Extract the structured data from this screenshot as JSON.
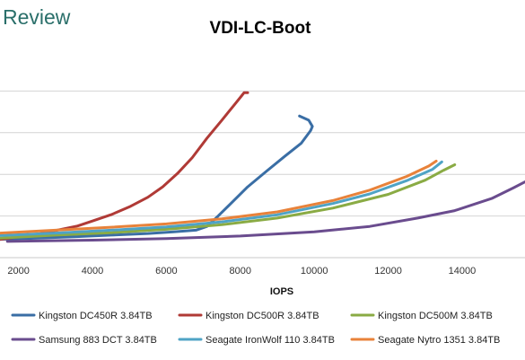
{
  "brand": {
    "logo_text": "Review",
    "logo_color": "#2a6f6a"
  },
  "chart_data": {
    "type": "line",
    "title": "VDI-LC-Boot",
    "xlabel": "IOPS",
    "ylabel": "",
    "xlim": [
      1500,
      15700
    ],
    "ylim": [
      0,
      5
    ],
    "x_ticks": [
      2000,
      4000,
      6000,
      8000,
      10000,
      12000,
      14000
    ],
    "x_tick_labels": [
      "2000",
      "4000",
      "6000",
      "8000",
      "10000",
      "12000",
      "14000"
    ],
    "y_gridlines": [
      1,
      2,
      3,
      4
    ],
    "grid": true,
    "legend_position": "bottom",
    "series": [
      {
        "name": "Kingston DC450R 3.84TB",
        "color": "#3a6ea5",
        "points": [
          [
            1500,
            0.44
          ],
          [
            2500,
            0.47
          ],
          [
            3500,
            0.5
          ],
          [
            4500,
            0.54
          ],
          [
            5500,
            0.58
          ],
          [
            6200,
            0.62
          ],
          [
            6800,
            0.66
          ],
          [
            7100,
            0.75
          ],
          [
            7400,
            1.0
          ],
          [
            7800,
            1.35
          ],
          [
            8200,
            1.7
          ],
          [
            8700,
            2.07
          ],
          [
            9200,
            2.43
          ],
          [
            9650,
            2.75
          ],
          [
            9900,
            3.05
          ],
          [
            9950,
            3.15
          ],
          [
            9850,
            3.3
          ],
          [
            9600,
            3.4
          ]
        ]
      },
      {
        "name": "Kingston DC500R 3.84TB",
        "color": "#b03a36",
        "points": [
          [
            1500,
            0.44
          ],
          [
            2500,
            0.56
          ],
          [
            3000,
            0.65
          ],
          [
            3600,
            0.76
          ],
          [
            4000,
            0.88
          ],
          [
            4500,
            1.03
          ],
          [
            5000,
            1.22
          ],
          [
            5500,
            1.45
          ],
          [
            5900,
            1.7
          ],
          [
            6300,
            2.02
          ],
          [
            6700,
            2.4
          ],
          [
            7100,
            2.87
          ],
          [
            7500,
            3.3
          ],
          [
            7850,
            3.68
          ],
          [
            8050,
            3.9
          ],
          [
            8100,
            3.96
          ],
          [
            8200,
            3.96
          ]
        ]
      },
      {
        "name": "Kingston DC500M 3.84TB",
        "color": "#8aab44",
        "points": [
          [
            1500,
            0.47
          ],
          [
            3000,
            0.54
          ],
          [
            4500,
            0.6
          ],
          [
            6000,
            0.68
          ],
          [
            7500,
            0.79
          ],
          [
            9000,
            0.95
          ],
          [
            10500,
            1.19
          ],
          [
            12000,
            1.52
          ],
          [
            13000,
            1.86
          ],
          [
            13500,
            2.1
          ],
          [
            13800,
            2.23
          ]
        ]
      },
      {
        "name": "Samsung 883 DCT 3.84TB",
        "color": "#6a4c8e",
        "points": [
          [
            1700,
            0.39
          ],
          [
            4000,
            0.42
          ],
          [
            6000,
            0.46
          ],
          [
            8000,
            0.52
          ],
          [
            10000,
            0.62
          ],
          [
            11500,
            0.75
          ],
          [
            12800,
            0.95
          ],
          [
            13800,
            1.13
          ],
          [
            14800,
            1.42
          ],
          [
            15400,
            1.68
          ],
          [
            15700,
            1.82
          ]
        ]
      },
      {
        "name": "Seagate IronWolf 110 3.84TB",
        "color": "#4fa3c5",
        "points": [
          [
            1500,
            0.53
          ],
          [
            3000,
            0.59
          ],
          [
            4500,
            0.66
          ],
          [
            6000,
            0.74
          ],
          [
            7500,
            0.86
          ],
          [
            9000,
            1.03
          ],
          [
            10500,
            1.3
          ],
          [
            11500,
            1.53
          ],
          [
            12500,
            1.85
          ],
          [
            13200,
            2.12
          ],
          [
            13450,
            2.3
          ]
        ]
      },
      {
        "name": "Seagate Nytro 1351 3.84TB",
        "color": "#e8823a",
        "points": [
          [
            1500,
            0.59
          ],
          [
            3000,
            0.66
          ],
          [
            4500,
            0.73
          ],
          [
            6000,
            0.81
          ],
          [
            7500,
            0.93
          ],
          [
            9000,
            1.1
          ],
          [
            10500,
            1.37
          ],
          [
            11500,
            1.62
          ],
          [
            12500,
            1.95
          ],
          [
            13100,
            2.2
          ],
          [
            13300,
            2.32
          ]
        ]
      }
    ]
  }
}
